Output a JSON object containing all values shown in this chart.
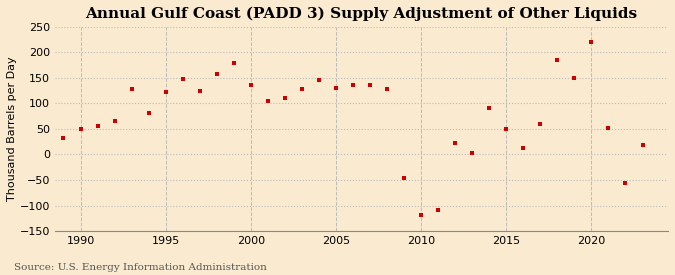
{
  "title": "Annual Gulf Coast (PADD 3) Supply Adjustment of Other Liquids",
  "ylabel": "Thousand Barrels per Day",
  "source": "Source: U.S. Energy Information Administration",
  "background_color": "#faebd0",
  "marker_color": "#cc0000",
  "years": [
    1989,
    1990,
    1991,
    1992,
    1993,
    1994,
    1995,
    1996,
    1997,
    1998,
    1999,
    2000,
    2001,
    2002,
    2003,
    2004,
    2005,
    2006,
    2007,
    2008,
    2009,
    2010,
    2011,
    2012,
    2013,
    2014,
    2015,
    2016,
    2017,
    2018,
    2019,
    2020,
    2021,
    2022,
    2023
  ],
  "values": [
    33,
    50,
    55,
    65,
    128,
    82,
    122,
    147,
    125,
    158,
    178,
    135,
    105,
    110,
    128,
    145,
    130,
    135,
    135,
    128,
    -45,
    -118,
    -108,
    22,
    3,
    90,
    50,
    12,
    60,
    185,
    150,
    220,
    52,
    -55,
    18
  ],
  "ylim": [
    -150,
    250
  ],
  "yticks": [
    -150,
    -100,
    -50,
    0,
    50,
    100,
    150,
    200,
    250
  ],
  "xlim": [
    1988.5,
    2024.5
  ],
  "xticks": [
    1990,
    1995,
    2000,
    2005,
    2010,
    2015,
    2020
  ],
  "grid_color": "#bbbbbb",
  "title_fontsize": 11,
  "label_fontsize": 8,
  "tick_fontsize": 8,
  "source_fontsize": 7.5
}
